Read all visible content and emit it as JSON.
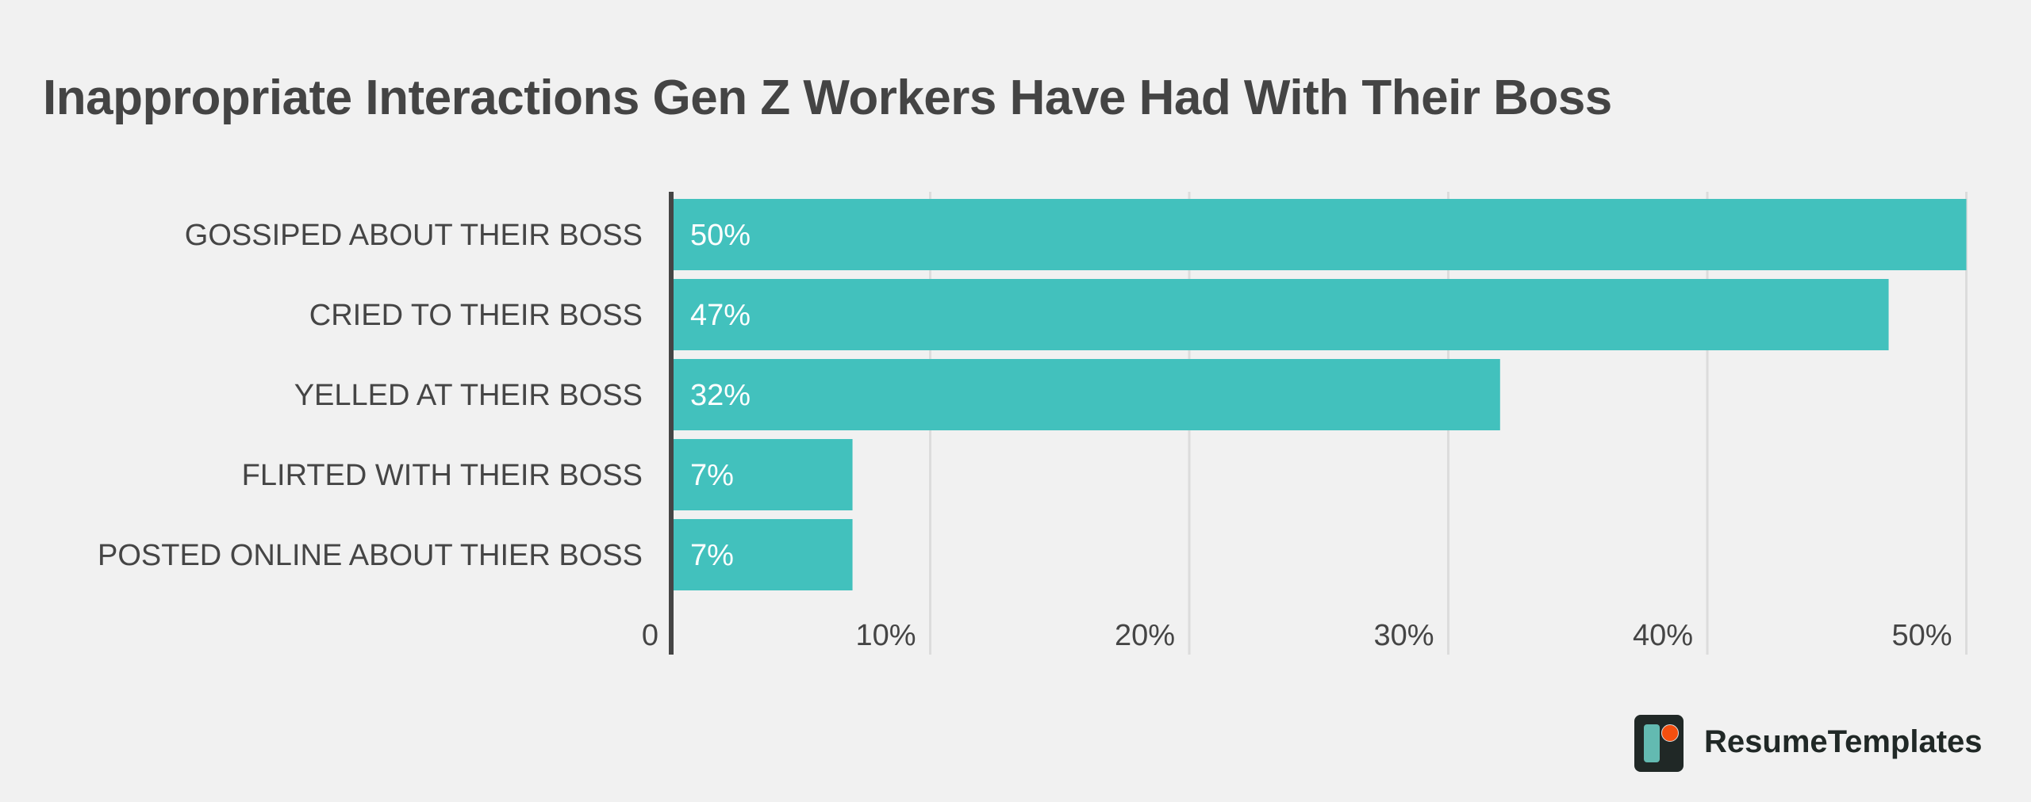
{
  "chart_data": {
    "type": "bar",
    "orientation": "horizontal",
    "title": "Inappropriate Interactions Gen Z Workers Have Had With Their Boss",
    "categories": [
      "GOSSIPED ABOUT THEIR BOSS",
      "CRIED TO THEIR BOSS",
      "YELLED AT THEIR BOSS",
      "FLIRTED WITH THEIR BOSS",
      "POSTED ONLINE ABOUT THIER BOSS"
    ],
    "values": [
      50,
      47,
      32,
      7,
      7
    ],
    "value_labels": [
      "50%",
      "47%",
      "32%",
      "7%",
      "7%"
    ],
    "xlim": [
      0,
      50
    ],
    "x_ticks": [
      0,
      10,
      20,
      30,
      40,
      50
    ],
    "x_tick_labels": [
      "0",
      "10%",
      "20%",
      "30%",
      "40%",
      "50%"
    ],
    "grid": true,
    "bar_color": "#42c1bd"
  },
  "brand": {
    "name": "ResumeTemplates",
    "colors": {
      "dark": "#202826",
      "teal": "#63bab1",
      "orange": "#f54f0f"
    }
  }
}
